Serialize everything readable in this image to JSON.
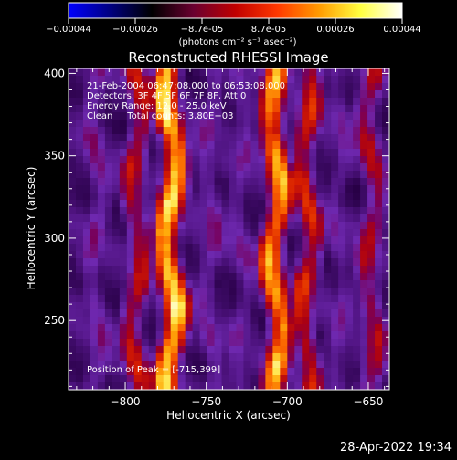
{
  "colorbar": {
    "ticks": [
      "-0.00044",
      "-0.00026",
      "-8.7e-05",
      "8.7e-05",
      "0.00026",
      "0.00044"
    ],
    "units": "(photons cm⁻² s⁻¹ asec⁻²)",
    "colors": [
      "#0000ff",
      "#000080",
      "#000000",
      "#6a0030",
      "#c00000",
      "#ff3800",
      "#ff9a00",
      "#ffff40",
      "#ffffff"
    ]
  },
  "chart_data": {
    "type": "heatmap",
    "title": "Reconstructed RHESSI Image",
    "xlabel": "Heliocentric X (arcsec)",
    "ylabel": "Heliocentric Y (arcsec)",
    "xlim": [
      -835,
      -637
    ],
    "ylim": [
      208,
      403
    ],
    "xticks": [
      -800,
      -750,
      -700,
      -650
    ],
    "yticks": [
      250,
      300,
      350,
      400
    ],
    "xtick_labels": [
      "-800",
      "-750",
      "-700",
      "-650"
    ],
    "ytick_labels": [
      "250",
      "300",
      "350",
      "400"
    ],
    "stripes": [
      {
        "x": -818,
        "level": 0.3
      },
      {
        "x": -793,
        "level": 0.5
      },
      {
        "x": -772,
        "level": 0.9
      },
      {
        "x": -748,
        "level": 0.28
      },
      {
        "x": -728,
        "level": 0.25
      },
      {
        "x": -707,
        "level": 0.8
      },
      {
        "x": -688,
        "level": 0.55
      },
      {
        "x": -668,
        "level": 0.25
      },
      {
        "x": -648,
        "level": 0.45
      }
    ],
    "peak": [
      -715,
      399
    ],
    "annotations": [
      "21-Feb-2004 06:47:08.000 to 06:53:08.000",
      "Detectors: 3F 4F 5F 6F 7F 8F, Att 0",
      "Energy Range: 12.0 - 25.0 keV",
      "Clean     Total counts: 3.80E+03"
    ],
    "peak_label": "Position of Peak = [-715,399]"
  },
  "timestamp": "28-Apr-2022 19:34"
}
